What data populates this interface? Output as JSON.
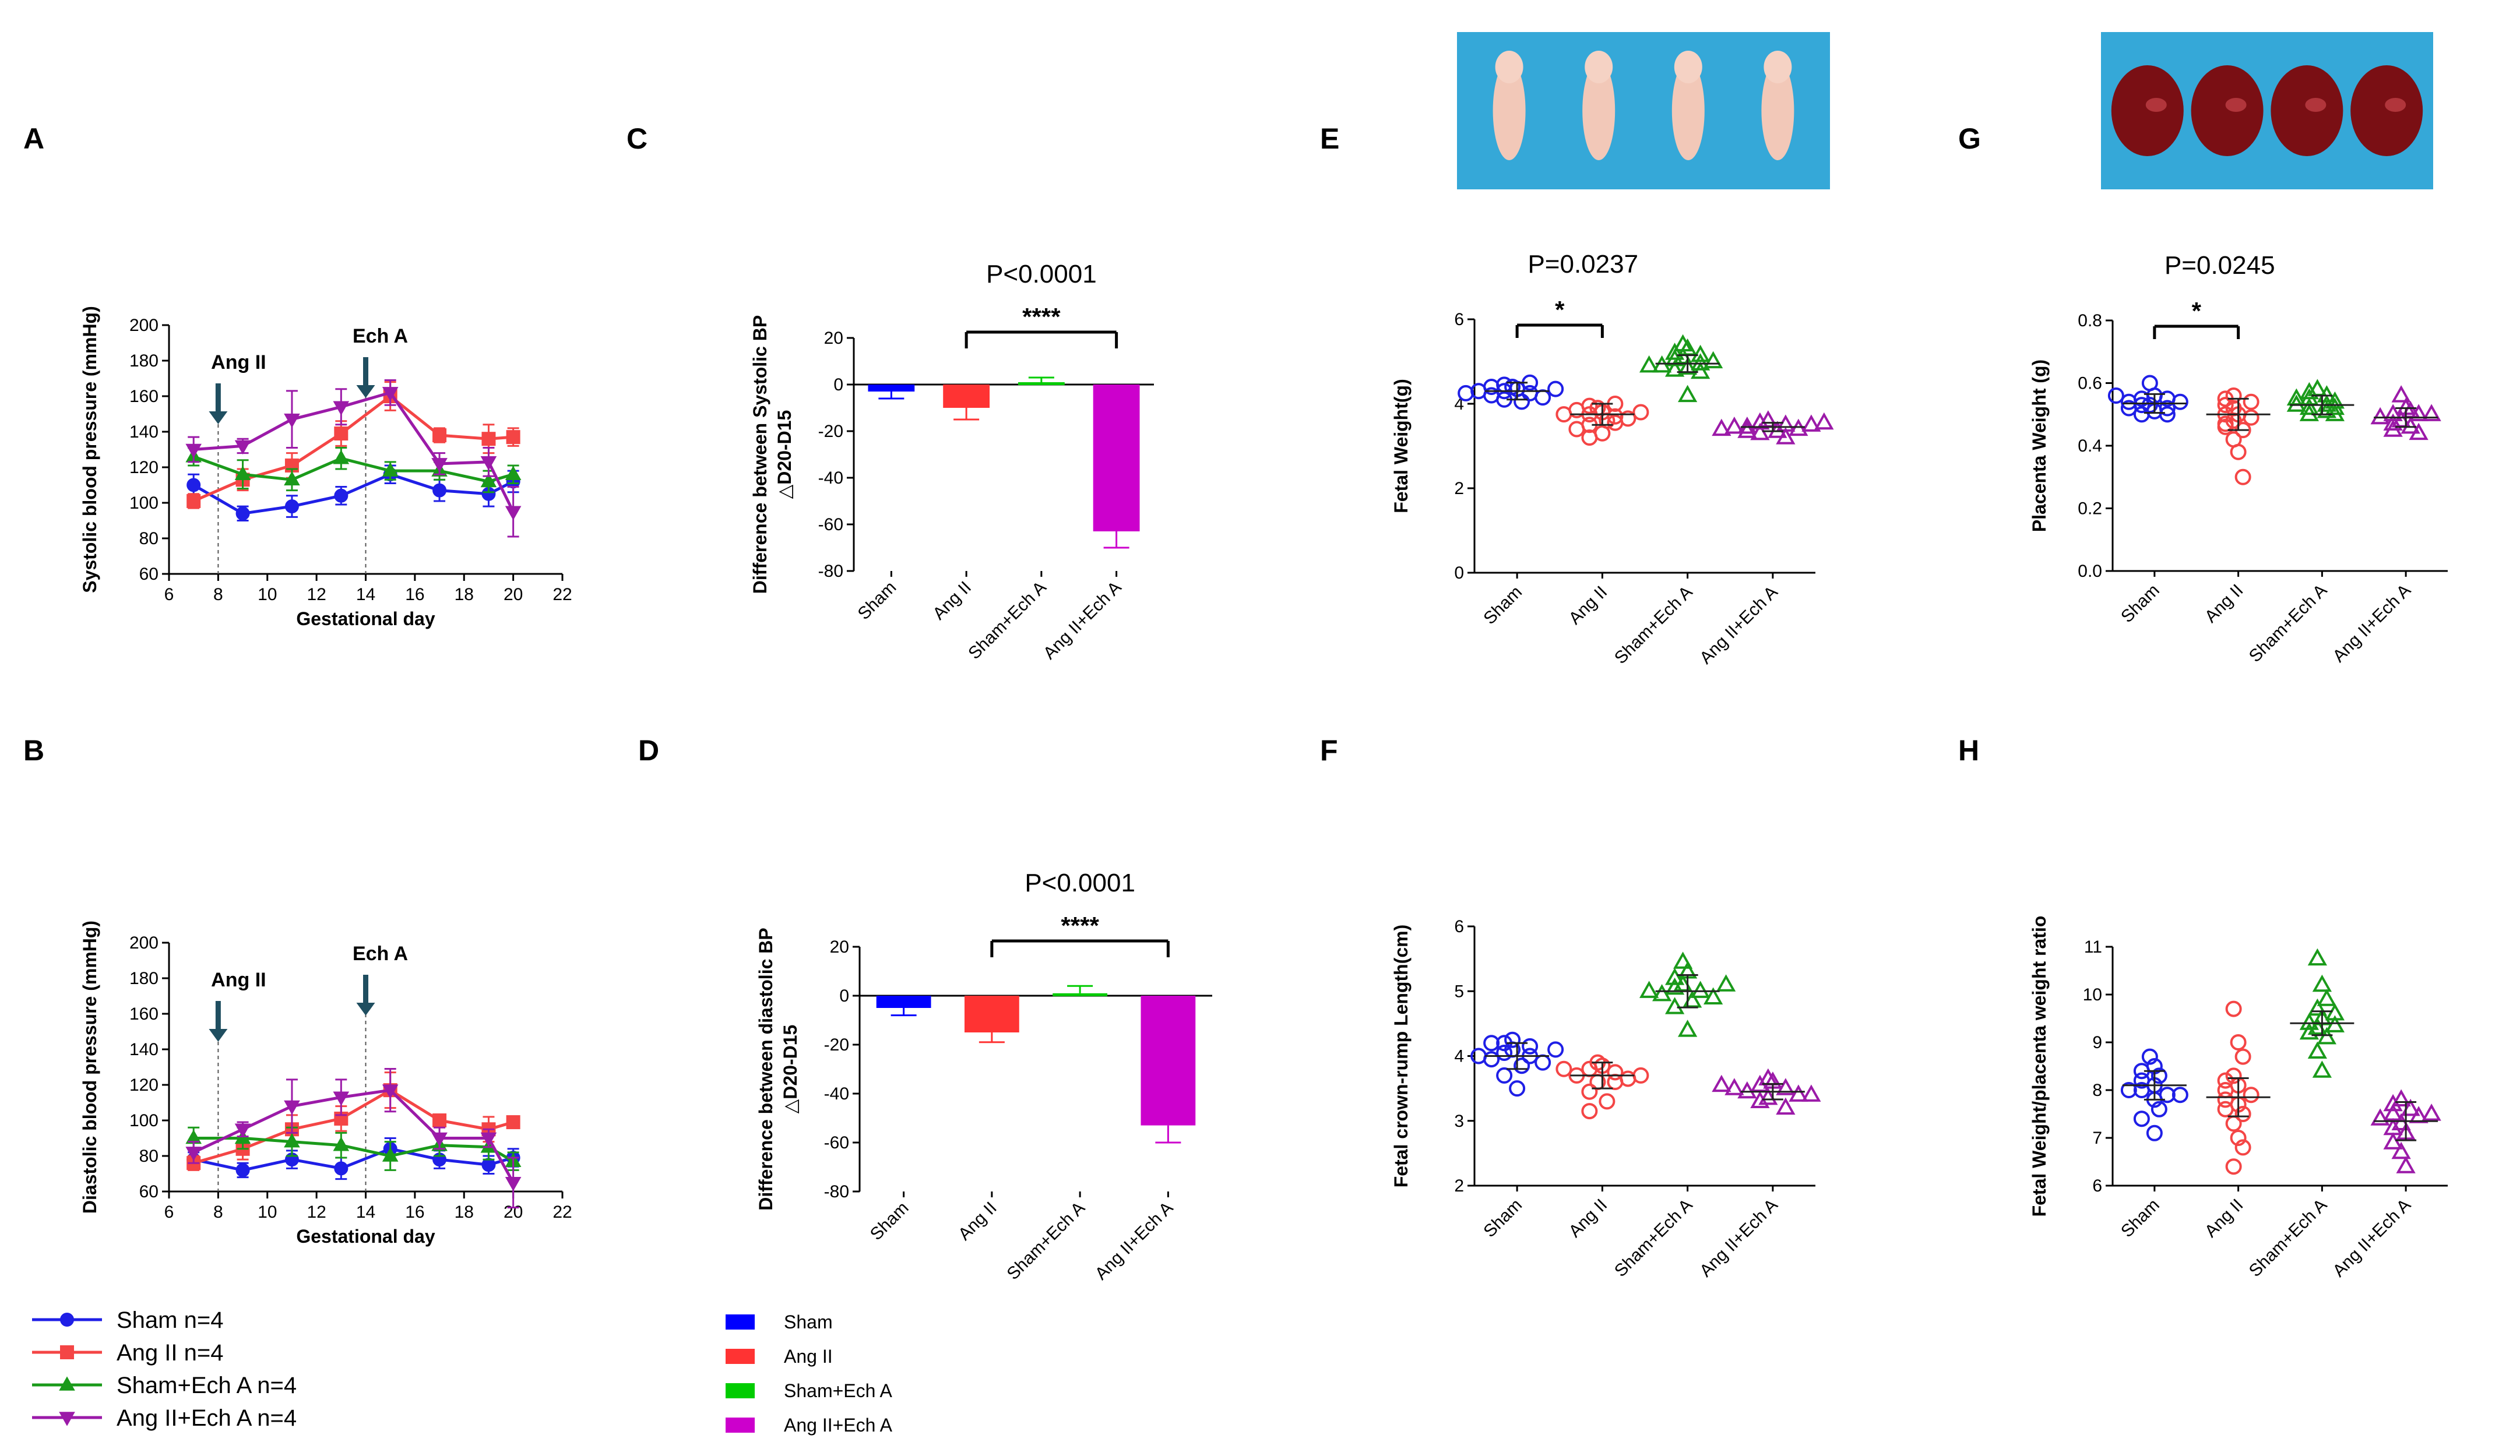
{
  "colors": {
    "sham": "#1f1fe6",
    "angii": "#f44545",
    "shamech": "#1a9a1a",
    "angiiech": "#9b1aa8",
    "bar_sham": "#0000ff",
    "bar_angii": "#ff3333",
    "bar_shamech": "#00cc00",
    "bar_angiiech": "#cc00cc",
    "photo_bg": "#35a8d8"
  },
  "legend_lines": [
    {
      "name": "Sham n=4",
      "color_key": "sham",
      "marker": "circle"
    },
    {
      "name": "Ang II n=4",
      "color_key": "angii",
      "marker": "square"
    },
    {
      "name": "Sham+Ech A n=4",
      "color_key": "shamech",
      "marker": "triangle"
    },
    {
      "name": "Ang II+Ech A n=4",
      "color_key": "angiiech",
      "marker": "triangle-down"
    }
  ],
  "legend_bars": [
    {
      "name": "Sham",
      "color_key": "bar_sham"
    },
    {
      "name": "Ang II",
      "color_key": "bar_angii"
    },
    {
      "name": "Sham+Ech A",
      "color_key": "bar_shamech"
    },
    {
      "name": "Ang II+Ech A",
      "color_key": "bar_angiiech"
    }
  ],
  "chart_data": [
    {
      "panel": "A",
      "type": "line",
      "xlabel": "Gestational day",
      "ylabel": "Systolic blood pressure (mmHg)",
      "xlim": [
        6,
        22
      ],
      "xticks": [
        6,
        8,
        10,
        12,
        14,
        16,
        18,
        20,
        22
      ],
      "ylim": [
        60,
        200
      ],
      "yticks": [
        60,
        80,
        100,
        120,
        140,
        160,
        180,
        200
      ],
      "vlines": [
        8,
        14
      ],
      "annotations": [
        {
          "label": "Ang II",
          "x": 8
        },
        {
          "label": "Ech A",
          "x": 14
        }
      ],
      "series": [
        {
          "key": "sham",
          "marker": "circle",
          "x": [
            7,
            9,
            11,
            13,
            15,
            17,
            19,
            20
          ],
          "y": [
            110,
            94,
            98,
            104,
            116,
            107,
            105,
            112
          ],
          "err": [
            6,
            4,
            6,
            5,
            5,
            6,
            7,
            6
          ]
        },
        {
          "key": "angii",
          "marker": "square",
          "x": [
            7,
            9,
            11,
            13,
            15,
            17,
            19,
            20
          ],
          "y": [
            101,
            113,
            121,
            139,
            160,
            138,
            136,
            137
          ],
          "err": [
            4,
            6,
            7,
            7,
            8,
            4,
            8,
            5
          ]
        },
        {
          "key": "shamech",
          "marker": "triangle",
          "x": [
            7,
            9,
            11,
            13,
            15,
            17,
            19,
            20
          ],
          "y": [
            126,
            116,
            113,
            125,
            118,
            118,
            112,
            116
          ],
          "err": [
            5,
            8,
            6,
            6,
            5,
            5,
            6,
            5
          ]
        },
        {
          "key": "angiiech",
          "marker": "triangle-down",
          "x": [
            7,
            9,
            11,
            13,
            15,
            17,
            19,
            20
          ],
          "y": [
            130,
            132,
            147,
            154,
            162,
            122,
            123,
            95
          ],
          "err": [
            7,
            4,
            16,
            10,
            7,
            6,
            8,
            14
          ]
        }
      ]
    },
    {
      "panel": "B",
      "type": "line",
      "xlabel": "Gestational day",
      "ylabel": "Diastolic blood pressure (mmHg)",
      "xlim": [
        6,
        22
      ],
      "xticks": [
        6,
        8,
        10,
        12,
        14,
        16,
        18,
        20,
        22
      ],
      "ylim": [
        60,
        200
      ],
      "yticks": [
        60,
        80,
        100,
        120,
        140,
        160,
        180,
        200
      ],
      "vlines": [
        8,
        14
      ],
      "annotations": [
        {
          "label": "Ang II",
          "x": 8
        },
        {
          "label": "Ech A",
          "x": 14
        }
      ],
      "series": [
        {
          "key": "sham",
          "marker": "circle",
          "x": [
            7,
            9,
            11,
            13,
            15,
            17,
            19,
            20
          ],
          "y": [
            78,
            72,
            78,
            73,
            84,
            78,
            75,
            79
          ],
          "err": [
            4,
            4,
            5,
            6,
            6,
            5,
            5,
            5
          ]
        },
        {
          "key": "angii",
          "marker": "square",
          "x": [
            7,
            9,
            11,
            13,
            15,
            17,
            19,
            20
          ],
          "y": [
            76,
            84,
            95,
            101,
            117,
            100,
            95,
            99
          ],
          "err": [
            4,
            6,
            8,
            7,
            10,
            3,
            7,
            3
          ]
        },
        {
          "key": "shamech",
          "marker": "triangle",
          "x": [
            7,
            9,
            11,
            13,
            15,
            17,
            19,
            20
          ],
          "y": [
            90,
            90,
            88,
            86,
            80,
            86,
            85,
            77
          ],
          "err": [
            6,
            6,
            8,
            7,
            8,
            6,
            7,
            5
          ]
        },
        {
          "key": "angiiech",
          "marker": "triangle-down",
          "x": [
            7,
            9,
            11,
            13,
            15,
            17,
            19,
            20
          ],
          "y": [
            82,
            95,
            108,
            113,
            117,
            90,
            90,
            65
          ],
          "err": [
            6,
            4,
            15,
            10,
            12,
            6,
            5,
            14
          ]
        }
      ]
    },
    {
      "panel": "C",
      "type": "bar",
      "ylabel_lines": [
        "Difference  between Systolic BP",
        "△D20-D15"
      ],
      "categories": [
        "Sham",
        "Ang II",
        "Sham+Ech A",
        "Ang II+Ech A"
      ],
      "values": [
        -3,
        -10,
        1,
        -63
      ],
      "errors": [
        3,
        5,
        2,
        7
      ],
      "ylim": [
        -80,
        20
      ],
      "yticks": [
        -80,
        -60,
        -40,
        -20,
        0,
        20
      ],
      "pvalue": "P<0.0001",
      "stars": "****",
      "bracket": [
        1,
        3
      ]
    },
    {
      "panel": "D",
      "type": "bar",
      "ylabel_lines": [
        "Difference  between diastolic BP",
        "△D20-D15"
      ],
      "categories": [
        "Sham",
        "Ang II",
        "Sham+Ech A",
        "Ang II+Ech A"
      ],
      "values": [
        -5,
        -15,
        1,
        -53
      ],
      "errors": [
        3,
        4,
        3,
        7
      ],
      "ylim": [
        -80,
        20
      ],
      "yticks": [
        -80,
        -60,
        -40,
        -20,
        0,
        20
      ],
      "pvalue": "P<0.0001",
      "stars": "****",
      "bracket": [
        1,
        3
      ]
    },
    {
      "panel": "E",
      "type": "scatter",
      "ylabel": "Fetal Weight(g)",
      "categories": [
        "Sham",
        "Ang II",
        "Sham+Ech A",
        "Ang II+Ech A"
      ],
      "ylim": [
        0,
        6
      ],
      "yticks": [
        0,
        2,
        4,
        6
      ],
      "ytick_labels": [
        "0",
        "2",
        "4",
        "6"
      ],
      "pvalue": "P=0.0237",
      "stars": "*",
      "bracket": [
        0,
        1
      ],
      "groups": [
        {
          "key": "sham",
          "marker": "circle",
          "mean": 4.3,
          "sd": 0.2,
          "points": [
            4.4,
            4.35,
            4.3,
            4.25,
            4.45,
            4.2,
            4.15,
            4.3,
            4.05,
            4.5,
            4.1,
            4.4,
            4.35,
            4.25
          ]
        },
        {
          "key": "angii",
          "marker": "circle",
          "mean": 3.75,
          "sd": 0.25,
          "points": [
            3.9,
            3.8,
            3.75,
            3.7,
            3.85,
            3.6,
            3.5,
            3.3,
            3.2,
            3.65,
            3.95,
            3.75,
            3.55,
            3.4,
            3.8,
            4.0
          ]
        },
        {
          "key": "shamech",
          "marker": "triangle",
          "mean": 4.95,
          "sd": 0.2,
          "points": [
            5.4,
            5.3,
            5.2,
            5.1,
            5.05,
            4.95,
            4.9,
            4.85,
            4.8,
            4.75,
            4.2,
            5.0,
            4.9,
            5.15
          ]
        },
        {
          "key": "angiiech",
          "marker": "triangle",
          "mean": 3.45,
          "sd": 0.1,
          "points": [
            3.6,
            3.55,
            3.5,
            3.45,
            3.4,
            3.35,
            3.3,
            3.45,
            3.5,
            3.4,
            3.2,
            3.55,
            3.35
          ]
        }
      ]
    },
    {
      "panel": "F",
      "type": "scatter",
      "ylabel": "Fetal crown-rump Length(cm)",
      "categories": [
        "Sham",
        "Ang II",
        "Sham+Ech A",
        "Ang II+Ech A"
      ],
      "ylim": [
        2,
        6
      ],
      "yticks": [
        2,
        3,
        4,
        5,
        6
      ],
      "ytick_labels": [
        "2",
        "3",
        "4",
        "5",
        "6"
      ],
      "groups": [
        {
          "key": "sham",
          "marker": "circle",
          "mean": 4.0,
          "sd": 0.2,
          "points": [
            4.25,
            4.2,
            4.15,
            4.1,
            4.05,
            4.0,
            3.95,
            3.9,
            3.85,
            3.7,
            3.5,
            4.0,
            4.1,
            4.2
          ]
        },
        {
          "key": "angii",
          "marker": "circle",
          "mean": 3.7,
          "sd": 0.2,
          "points": [
            3.9,
            3.85,
            3.8,
            3.75,
            3.7,
            3.65,
            3.6,
            3.45,
            3.3,
            3.15,
            3.8,
            3.7,
            3.6
          ]
        },
        {
          "key": "shamech",
          "marker": "triangle",
          "mean": 5.0,
          "sd": 0.25,
          "points": [
            5.45,
            5.3,
            5.2,
            5.1,
            5.05,
            5.0,
            4.95,
            4.9,
            4.85,
            4.75,
            4.4,
            5.0,
            5.1
          ]
        },
        {
          "key": "angiiech",
          "marker": "triangle",
          "mean": 3.45,
          "sd": 0.12,
          "points": [
            3.65,
            3.6,
            3.55,
            3.5,
            3.45,
            3.4,
            3.35,
            3.3,
            3.2,
            3.5,
            3.4,
            3.55
          ]
        }
      ]
    },
    {
      "panel": "G",
      "type": "scatter",
      "ylabel": "Placenta Weight (g)",
      "categories": [
        "Sham",
        "Ang II",
        "Sham+Ech A",
        "Ang II+Ech A"
      ],
      "ylim": [
        0,
        0.8
      ],
      "yticks": [
        0,
        0.2,
        0.4,
        0.6,
        0.8
      ],
      "ytick_labels": [
        "0.0",
        "0.2",
        "0.4",
        "0.6",
        "0.8"
      ],
      "pvalue": "P=0.0245",
      "stars": "*",
      "bracket": [
        0,
        1
      ],
      "groups": [
        {
          "key": "sham",
          "marker": "circle",
          "mean": 0.535,
          "sd": 0.03,
          "points": [
            0.6,
            0.56,
            0.55,
            0.55,
            0.54,
            0.54,
            0.53,
            0.53,
            0.52,
            0.52,
            0.51,
            0.5,
            0.5,
            0.56
          ]
        },
        {
          "key": "angii",
          "marker": "circle",
          "mean": 0.5,
          "sd": 0.05,
          "points": [
            0.56,
            0.55,
            0.54,
            0.52,
            0.5,
            0.5,
            0.48,
            0.47,
            0.45,
            0.42,
            0.38,
            0.3,
            0.53,
            0.49,
            0.46
          ]
        },
        {
          "key": "shamech",
          "marker": "triangle",
          "mean": 0.53,
          "sd": 0.03,
          "points": [
            0.58,
            0.57,
            0.56,
            0.55,
            0.54,
            0.53,
            0.52,
            0.52,
            0.51,
            0.5,
            0.5,
            0.55,
            0.53
          ]
        },
        {
          "key": "angiiech",
          "marker": "triangle",
          "mean": 0.49,
          "sd": 0.03,
          "points": [
            0.56,
            0.52,
            0.51,
            0.5,
            0.5,
            0.49,
            0.48,
            0.47,
            0.46,
            0.45,
            0.44,
            0.5
          ]
        }
      ]
    },
    {
      "panel": "H",
      "type": "scatter",
      "ylabel": "Fetal Weight/placenta weight  ratio",
      "categories": [
        "Sham",
        "Ang II",
        "Sham+Ech A",
        "Ang II+Ech A"
      ],
      "ylim": [
        6,
        11
      ],
      "yticks": [
        6,
        7,
        8,
        9,
        10,
        11
      ],
      "ytick_labels": [
        "6",
        "7",
        "8",
        "9",
        "10",
        "11"
      ],
      "groups": [
        {
          "key": "sham",
          "marker": "circle",
          "mean": 8.1,
          "sd": 0.3,
          "points": [
            8.7,
            8.5,
            8.3,
            8.2,
            8.1,
            8.0,
            7.9,
            7.8,
            7.6,
            7.4,
            7.1,
            8.4,
            8.0,
            7.9
          ]
        },
        {
          "key": "angii",
          "marker": "circle",
          "mean": 7.85,
          "sd": 0.4,
          "points": [
            9.7,
            9.0,
            8.7,
            8.3,
            8.1,
            8.0,
            7.9,
            7.7,
            7.5,
            7.3,
            7.0,
            6.8,
            6.4,
            8.2,
            7.6,
            7.8
          ]
        },
        {
          "key": "shamech",
          "marker": "triangle",
          "mean": 9.4,
          "sd": 0.25,
          "points": [
            10.75,
            10.2,
            9.9,
            9.7,
            9.5,
            9.4,
            9.3,
            9.2,
            9.1,
            8.8,
            8.4,
            9.6,
            9.35
          ]
        },
        {
          "key": "angiiech",
          "marker": "triangle",
          "mean": 7.35,
          "sd": 0.4,
          "points": [
            7.8,
            7.7,
            7.6,
            7.5,
            7.45,
            7.4,
            7.3,
            7.1,
            6.9,
            6.7,
            6.4,
            7.5,
            7.2
          ]
        }
      ]
    }
  ]
}
